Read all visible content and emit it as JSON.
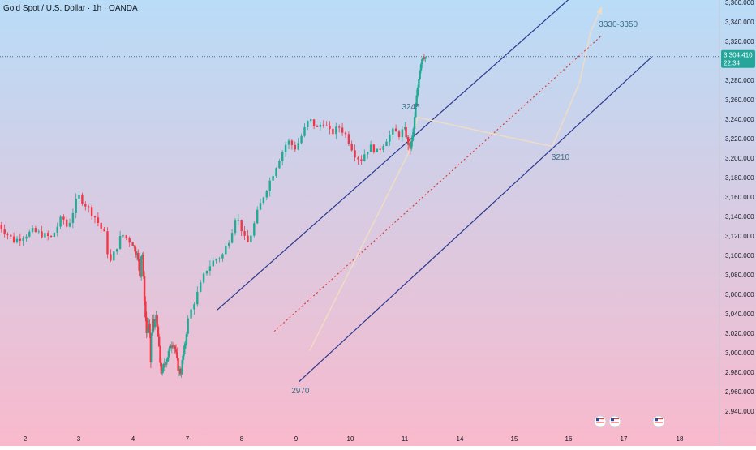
{
  "chart_data": {
    "type": "candlestick",
    "title": "Gold Spot / U.S. Dollar · 1h · OANDA",
    "y_ticks": [
      2940,
      2960,
      2980,
      3000,
      3020,
      3040,
      3060,
      3080,
      3100,
      3120,
      3140,
      3160,
      3180,
      3200,
      3220,
      3240,
      3260,
      3280,
      3300,
      3320,
      3340,
      3360
    ],
    "y_tick_labels": [
      "2,940.000",
      "2,960.000",
      "2,980.000",
      "3,000.000",
      "3,020.000",
      "3,040.000",
      "3,060.000",
      "3,080.000",
      "3,100.000",
      "3,120.000",
      "3,140.000",
      "3,160.000",
      "3,180.000",
      "3,200.000",
      "3,220.000",
      "3,240.000",
      "3,260.000",
      "3,280.000",
      "",
      "3,320.000",
      "3,340.000",
      "3,360.000"
    ],
    "ylim": [
      2930,
      3365
    ],
    "x_days": [
      2,
      3,
      4,
      7,
      8,
      9,
      10,
      11,
      14,
      15,
      16,
      17,
      18
    ],
    "x_day_labels": [
      "2",
      "3",
      "4",
      "7",
      "8",
      "9",
      "10",
      "11",
      "14",
      "15",
      "16",
      "17",
      "18"
    ],
    "last_price": 3304.41,
    "last_price_label": "3,304.410",
    "countdown": "22:34",
    "annotations": [
      {
        "text": "3245",
        "day": 11.33,
        "price": 3245
      },
      {
        "text": "2970",
        "day": 9.08,
        "price": 2970
      },
      {
        "text": "3210",
        "day": 15.85,
        "price": 3210
      },
      {
        "text": "3330-3350",
        "day": 16.9,
        "price": 3330
      }
    ],
    "channel_upper": {
      "start": {
        "day": 7.55,
        "price": 3044
      },
      "end": {
        "day": 16.0,
        "price": 3363
      }
    },
    "channel_lower": {
      "start": {
        "day": 9.05,
        "price": 2970
      },
      "end": {
        "day": 17.5,
        "price": 3304
      }
    },
    "trend_line": {
      "start": {
        "day": 8.6,
        "price": 3022
      },
      "end": {
        "day": 16.6,
        "price": 3326
      }
    },
    "projection_path": [
      {
        "day": 9.25,
        "price": 3002
      },
      {
        "day": 11.2,
        "price": 3205
      },
      {
        "day": 11.7,
        "price": 3242
      },
      {
        "day": 14.6,
        "price": 3225
      },
      {
        "day": 15.7,
        "price": 3212
      },
      {
        "day": 16.2,
        "price": 3278
      },
      {
        "day": 16.4,
        "price": 3330
      },
      {
        "day": 16.6,
        "price": 3355
      }
    ],
    "price_path": [
      {
        "day": 1.5,
        "price": 3135
      },
      {
        "day": 1.85,
        "price": 3115
      },
      {
        "day": 2.2,
        "price": 3125
      },
      {
        "day": 2.55,
        "price": 3118
      },
      {
        "day": 2.75,
        "price": 3140
      },
      {
        "day": 2.85,
        "price": 3128
      },
      {
        "day": 3.05,
        "price": 3162
      },
      {
        "day": 3.35,
        "price": 3140
      },
      {
        "day": 3.55,
        "price": 3120
      },
      {
        "day": 3.62,
        "price": 3090
      },
      {
        "day": 3.75,
        "price": 3108
      },
      {
        "day": 3.85,
        "price": 3122
      },
      {
        "day": 4.1,
        "price": 3110
      },
      {
        "day": 4.3,
        "price": 3100
      },
      {
        "day": 4.45,
        "price": 3078
      },
      {
        "day": 4.55,
        "price": 3112
      },
      {
        "day": 4.62,
        "price": 3080
      },
      {
        "day": 4.72,
        "price": 3045
      },
      {
        "day": 4.8,
        "price": 3020
      },
      {
        "day": 4.95,
        "price": 3030
      },
      {
        "day": 5.05,
        "price": 2985
      },
      {
        "day": 5.12,
        "price": 3038
      },
      {
        "day": 5.2,
        "price": 3025
      },
      {
        "day": 5.3,
        "price": 3040
      },
      {
        "day": 5.45,
        "price": 3015
      },
      {
        "day": 5.55,
        "price": 2992
      },
      {
        "day": 5.65,
        "price": 2975
      },
      {
        "day": 5.75,
        "price": 2988
      },
      {
        "day": 5.9,
        "price": 2992
      },
      {
        "day": 6.05,
        "price": 3002
      },
      {
        "day": 6.2,
        "price": 3010
      },
      {
        "day": 6.32,
        "price": 3008
      },
      {
        "day": 6.45,
        "price": 2996
      },
      {
        "day": 6.55,
        "price": 2984
      },
      {
        "day": 6.7,
        "price": 2978
      },
      {
        "day": 6.8,
        "price": 2994
      },
      {
        "day": 6.95,
        "price": 3010
      },
      {
        "day": 7.1,
        "price": 3040
      },
      {
        "day": 7.25,
        "price": 3062
      },
      {
        "day": 7.4,
        "price": 3085
      },
      {
        "day": 7.55,
        "price": 3095
      },
      {
        "day": 7.7,
        "price": 3100
      },
      {
        "day": 7.85,
        "price": 3120
      },
      {
        "day": 7.95,
        "price": 3142
      },
      {
        "day": 8.05,
        "price": 3128
      },
      {
        "day": 8.15,
        "price": 3110
      },
      {
        "day": 8.25,
        "price": 3125
      },
      {
        "day": 8.35,
        "price": 3145
      },
      {
        "day": 8.45,
        "price": 3160
      },
      {
        "day": 8.6,
        "price": 3180
      },
      {
        "day": 8.75,
        "price": 3200
      },
      {
        "day": 8.9,
        "price": 3218
      },
      {
        "day": 9.05,
        "price": 3210
      },
      {
        "day": 9.15,
        "price": 3222
      },
      {
        "day": 9.3,
        "price": 3240
      },
      {
        "day": 9.45,
        "price": 3230
      },
      {
        "day": 9.55,
        "price": 3238
      },
      {
        "day": 9.7,
        "price": 3225
      },
      {
        "day": 9.85,
        "price": 3232
      },
      {
        "day": 9.95,
        "price": 3226
      },
      {
        "day": 10.05,
        "price": 3215
      },
      {
        "day": 10.15,
        "price": 3203
      },
      {
        "day": 10.25,
        "price": 3198
      },
      {
        "day": 10.35,
        "price": 3208
      },
      {
        "day": 10.45,
        "price": 3212
      },
      {
        "day": 10.55,
        "price": 3206
      },
      {
        "day": 10.65,
        "price": 3214
      },
      {
        "day": 10.75,
        "price": 3222
      },
      {
        "day": 10.85,
        "price": 3228
      },
      {
        "day": 10.95,
        "price": 3224
      },
      {
        "day": 11.05,
        "price": 3230
      },
      {
        "day": 11.15,
        "price": 3222
      },
      {
        "day": 11.25,
        "price": 3215
      },
      {
        "day": 11.35,
        "price": 3210
      },
      {
        "day": 11.45,
        "price": 3218
      },
      {
        "day": 11.55,
        "price": 3232
      },
      {
        "day": 11.65,
        "price": 3252
      },
      {
        "day": 11.75,
        "price": 3270
      },
      {
        "day": 11.85,
        "price": 3288
      },
      {
        "day": 11.95,
        "price": 3300
      },
      {
        "day": 12.05,
        "price": 3306
      },
      {
        "day": 12.15,
        "price": 3304
      }
    ],
    "up_color": "#22ab94",
    "down_color": "#f23645",
    "channel_color": "#2b3a8f",
    "trend_line_color": "#e03a3a",
    "projection_color": "#f0dcc4",
    "price_tag_color": "#26a69a",
    "price_line_color": "#5a6a7e",
    "bg_top": "#b9dcf7",
    "bg_bottom": "#f9b9cc",
    "icons": [
      "calendar-event-icon",
      "us-flag-event-icon",
      "us-flag-event-icon"
    ]
  }
}
